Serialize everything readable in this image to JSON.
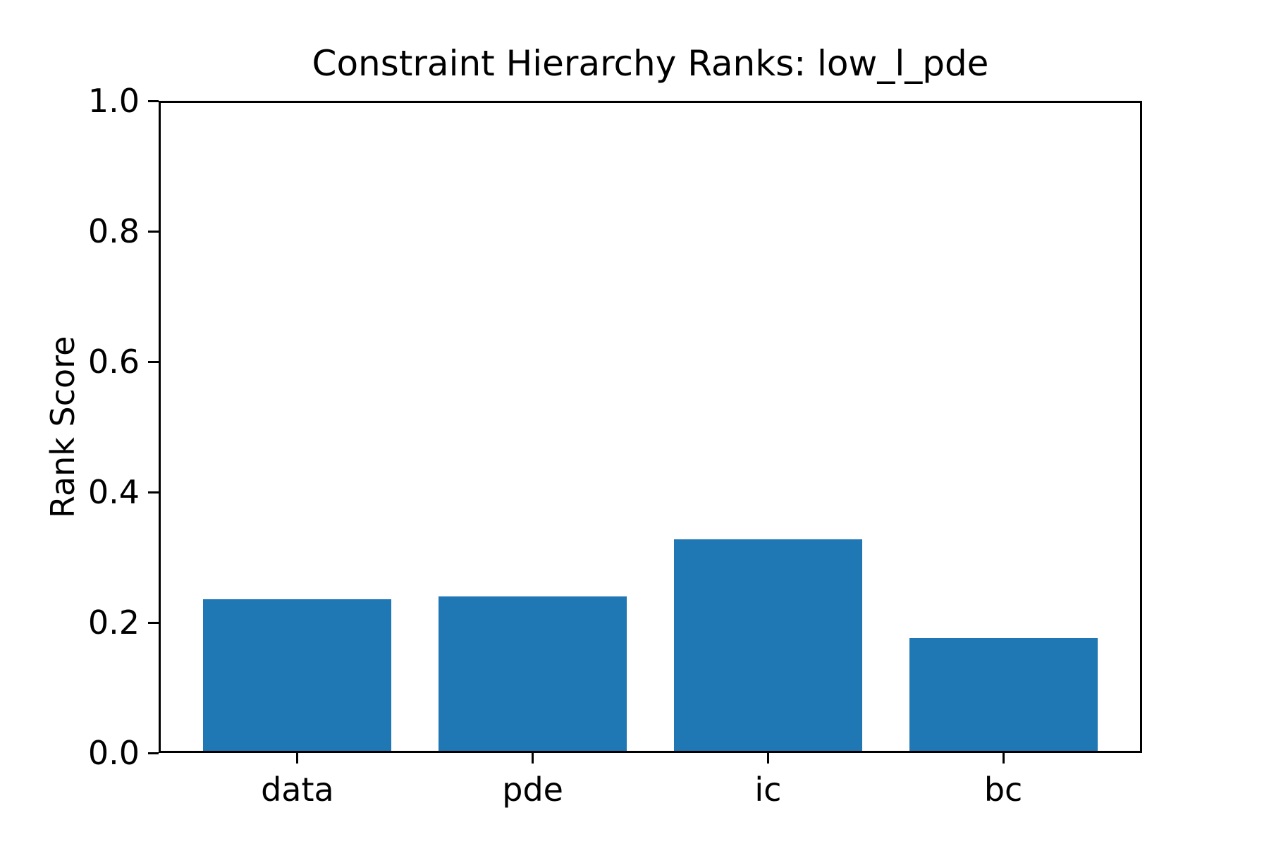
{
  "chart_data": {
    "type": "bar",
    "title": "Constraint Hierarchy Ranks: low_l_pde",
    "ylabel": "Rank Score",
    "xlabel": "",
    "categories": [
      "data",
      "pde",
      "ic",
      "bc"
    ],
    "values": [
      0.236,
      0.24,
      0.328,
      0.176
    ],
    "ylim": [
      0.0,
      1.0
    ],
    "yticks": [
      0.0,
      0.2,
      0.4,
      0.6,
      0.8,
      1.0
    ],
    "ytick_labels": [
      "0.0",
      "0.2",
      "0.4",
      "0.6",
      "0.8",
      "1.0"
    ],
    "xlim": [
      -0.59,
      3.59
    ],
    "bar_width_units": 0.8,
    "grid": false,
    "legend_position": "none",
    "bar_color": "#1f77b4",
    "axis_color": "#000000",
    "text_color": "#000000",
    "background_color": "#ffffff"
  }
}
